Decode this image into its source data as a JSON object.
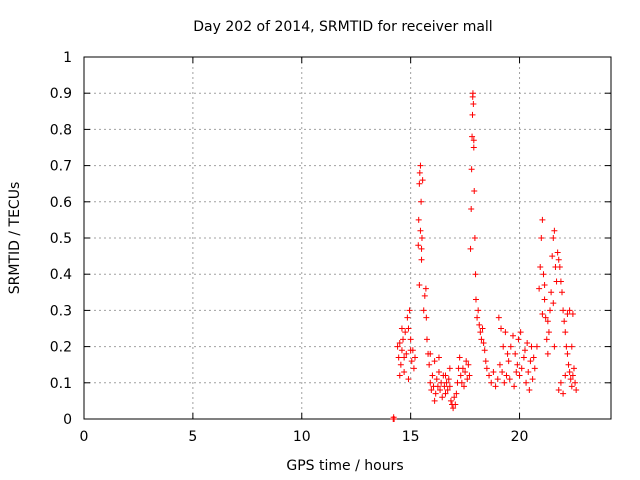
{
  "chart_data": {
    "type": "scatter",
    "title": "Day 202 of 2014, SRMTID for receiver mall",
    "xlabel": "GPS time / hours",
    "ylabel": "SRMTID / TECUs",
    "xlim": [
      0,
      24.2
    ],
    "ylim": [
      0,
      1
    ],
    "xticks": [
      0,
      5,
      10,
      15,
      20
    ],
    "yticks": [
      0,
      0.1,
      0.2,
      0.3,
      0.4,
      0.5,
      0.6,
      0.7,
      0.8,
      0.9,
      1
    ],
    "ytick_labels": [
      "0",
      "0.1",
      "0.2",
      "0.3",
      "0.4",
      "0.5",
      "0.6",
      "0.7",
      "0.8",
      "0.9",
      "1"
    ],
    "grid": true,
    "marker": "+",
    "marker_color": "#ff0000",
    "series": [
      {
        "name": "SRMTID",
        "points": [
          [
            14.2,
            0.0
          ],
          [
            14.22,
            0.005
          ],
          [
            14.24,
            0.0
          ],
          [
            14.4,
            0.2
          ],
          [
            14.45,
            0.17
          ],
          [
            14.5,
            0.21
          ],
          [
            14.55,
            0.15
          ],
          [
            14.6,
            0.19
          ],
          [
            14.65,
            0.22
          ],
          [
            14.7,
            0.13
          ],
          [
            14.75,
            0.24
          ],
          [
            14.8,
            0.18
          ],
          [
            14.85,
            0.28
          ],
          [
            14.9,
            0.25
          ],
          [
            14.95,
            0.3
          ],
          [
            15.0,
            0.22
          ],
          [
            15.05,
            0.16
          ],
          [
            15.1,
            0.19
          ],
          [
            15.15,
            0.14
          ],
          [
            15.2,
            0.17
          ],
          [
            14.5,
            0.12
          ],
          [
            14.6,
            0.25
          ],
          [
            14.7,
            0.17
          ],
          [
            14.9,
            0.11
          ],
          [
            15.0,
            0.19
          ],
          [
            15.35,
            0.48
          ],
          [
            15.37,
            0.55
          ],
          [
            15.4,
            0.65
          ],
          [
            15.42,
            0.68
          ],
          [
            15.45,
            0.7
          ],
          [
            15.48,
            0.6
          ],
          [
            15.5,
            0.44
          ],
          [
            15.52,
            0.5
          ],
          [
            15.55,
            0.66
          ],
          [
            15.4,
            0.37
          ],
          [
            15.45,
            0.52
          ],
          [
            15.5,
            0.47
          ],
          [
            15.6,
            0.3
          ],
          [
            15.65,
            0.34
          ],
          [
            15.7,
            0.36
          ],
          [
            15.72,
            0.28
          ],
          [
            15.75,
            0.22
          ],
          [
            15.8,
            0.18
          ],
          [
            15.85,
            0.15
          ],
          [
            15.9,
            0.1
          ],
          [
            15.95,
            0.08
          ],
          [
            16.0,
            0.12
          ],
          [
            16.05,
            0.09
          ],
          [
            16.1,
            0.16
          ],
          [
            16.15,
            0.07
          ],
          [
            16.2,
            0.11
          ],
          [
            16.25,
            0.09
          ],
          [
            16.3,
            0.13
          ],
          [
            16.35,
            0.08
          ],
          [
            16.4,
            0.1
          ],
          [
            16.45,
            0.06
          ],
          [
            16.5,
            0.12
          ],
          [
            16.55,
            0.09
          ],
          [
            16.6,
            0.07
          ],
          [
            16.65,
            0.1
          ],
          [
            16.7,
            0.08
          ],
          [
            16.75,
            0.11
          ],
          [
            16.8,
            0.09
          ],
          [
            16.85,
            0.05
          ],
          [
            16.9,
            0.04
          ],
          [
            16.95,
            0.03
          ],
          [
            17.0,
            0.06
          ],
          [
            17.05,
            0.04
          ],
          [
            17.1,
            0.07
          ],
          [
            17.15,
            0.1
          ],
          [
            17.2,
            0.14
          ],
          [
            17.25,
            0.17
          ],
          [
            17.3,
            0.12
          ],
          [
            17.35,
            0.1
          ],
          [
            17.4,
            0.14
          ],
          [
            17.45,
            0.09
          ],
          [
            17.5,
            0.13
          ],
          [
            17.55,
            0.16
          ],
          [
            17.6,
            0.11
          ],
          [
            17.65,
            0.15
          ],
          [
            17.7,
            0.12
          ],
          [
            15.9,
            0.18
          ],
          [
            16.1,
            0.05
          ],
          [
            16.3,
            0.17
          ],
          [
            16.6,
            0.12
          ],
          [
            16.8,
            0.14
          ],
          [
            17.75,
            0.47
          ],
          [
            17.78,
            0.58
          ],
          [
            17.8,
            0.69
          ],
          [
            17.82,
            0.78
          ],
          [
            17.84,
            0.84
          ],
          [
            17.86,
            0.9
          ],
          [
            17.88,
            0.87
          ],
          [
            17.9,
            0.75
          ],
          [
            17.92,
            0.63
          ],
          [
            17.95,
            0.5
          ],
          [
            17.98,
            0.4
          ],
          [
            18.0,
            0.33
          ],
          [
            17.85,
            0.89
          ],
          [
            17.9,
            0.77
          ],
          [
            18.05,
            0.28
          ],
          [
            18.1,
            0.3
          ],
          [
            18.15,
            0.26
          ],
          [
            18.2,
            0.24
          ],
          [
            18.25,
            0.22
          ],
          [
            18.3,
            0.25
          ],
          [
            18.35,
            0.21
          ],
          [
            18.4,
            0.19
          ],
          [
            18.45,
            0.16
          ],
          [
            18.5,
            0.14
          ],
          [
            18.6,
            0.12
          ],
          [
            18.7,
            0.1
          ],
          [
            18.8,
            0.13
          ],
          [
            18.9,
            0.09
          ],
          [
            19.0,
            0.11
          ],
          [
            19.1,
            0.15
          ],
          [
            19.2,
            0.13
          ],
          [
            19.3,
            0.1
          ],
          [
            19.4,
            0.12
          ],
          [
            19.5,
            0.16
          ],
          [
            19.6,
            0.2
          ],
          [
            19.7,
            0.23
          ],
          [
            19.8,
            0.18
          ],
          [
            19.9,
            0.15
          ],
          [
            20.0,
            0.12
          ],
          [
            20.1,
            0.14
          ],
          [
            20.2,
            0.17
          ],
          [
            20.3,
            0.1
          ],
          [
            20.4,
            0.13
          ],
          [
            20.5,
            0.16
          ],
          [
            20.6,
            0.11
          ],
          [
            20.7,
            0.14
          ],
          [
            20.8,
            0.2
          ],
          [
            19.05,
            0.28
          ],
          [
            19.15,
            0.25
          ],
          [
            19.25,
            0.2
          ],
          [
            19.35,
            0.24
          ],
          [
            19.45,
            0.18
          ],
          [
            19.55,
            0.11
          ],
          [
            19.75,
            0.09
          ],
          [
            19.85,
            0.13
          ],
          [
            19.95,
            0.22
          ],
          [
            20.05,
            0.24
          ],
          [
            20.25,
            0.19
          ],
          [
            20.35,
            0.21
          ],
          [
            20.45,
            0.08
          ],
          [
            20.55,
            0.2
          ],
          [
            20.65,
            0.17
          ],
          [
            20.9,
            0.36
          ],
          [
            20.95,
            0.42
          ],
          [
            21.0,
            0.5
          ],
          [
            21.05,
            0.55
          ],
          [
            21.1,
            0.4
          ],
          [
            21.15,
            0.33
          ],
          [
            21.2,
            0.28
          ],
          [
            21.25,
            0.22
          ],
          [
            21.3,
            0.18
          ],
          [
            21.35,
            0.24
          ],
          [
            21.4,
            0.3
          ],
          [
            21.45,
            0.35
          ],
          [
            21.5,
            0.45
          ],
          [
            21.55,
            0.5
          ],
          [
            21.6,
            0.52
          ],
          [
            21.65,
            0.42
          ],
          [
            21.7,
            0.38
          ],
          [
            21.75,
            0.46
          ],
          [
            21.8,
            0.44
          ],
          [
            21.85,
            0.42
          ],
          [
            21.9,
            0.38
          ],
          [
            21.95,
            0.35
          ],
          [
            22.0,
            0.3
          ],
          [
            22.05,
            0.27
          ],
          [
            22.1,
            0.24
          ],
          [
            22.15,
            0.2
          ],
          [
            22.2,
            0.18
          ],
          [
            22.25,
            0.15
          ],
          [
            22.3,
            0.13
          ],
          [
            22.35,
            0.11
          ],
          [
            22.4,
            0.09
          ],
          [
            22.45,
            0.12
          ],
          [
            22.5,
            0.14
          ],
          [
            22.55,
            0.1
          ],
          [
            22.6,
            0.08
          ],
          [
            21.3,
            0.27
          ],
          [
            21.6,
            0.2
          ],
          [
            21.9,
            0.1
          ],
          [
            22.0,
            0.07
          ],
          [
            22.2,
            0.29
          ],
          [
            22.3,
            0.3
          ],
          [
            22.4,
            0.2
          ],
          [
            21.05,
            0.29
          ],
          [
            21.15,
            0.37
          ],
          [
            21.55,
            0.32
          ],
          [
            21.8,
            0.08
          ],
          [
            22.1,
            0.12
          ],
          [
            22.45,
            0.29
          ]
        ]
      }
    ]
  }
}
